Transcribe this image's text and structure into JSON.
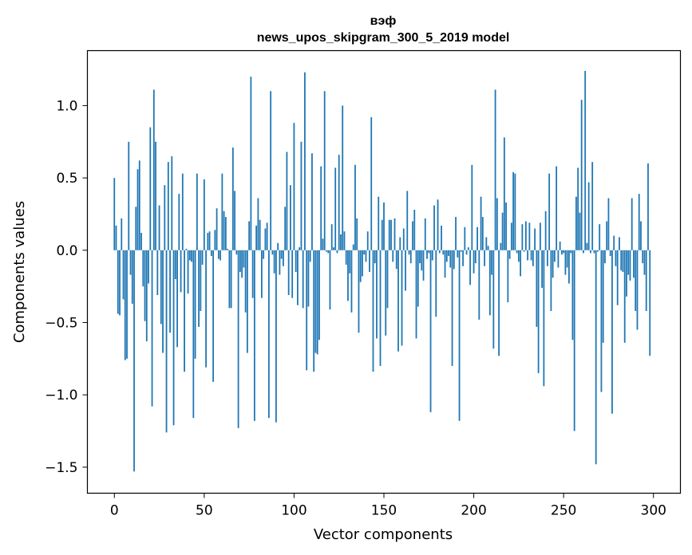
{
  "chart_data": {
    "type": "bar",
    "title_line1": "вэф",
    "title_line2": "news_upos_skipgram_300_5_2019 model",
    "xlabel": "Vector components",
    "ylabel": "Components values",
    "xlim": [
      -15,
      315
    ],
    "ylim": [
      -1.68,
      1.38
    ],
    "xticks": [
      0,
      50,
      100,
      150,
      200,
      250,
      300
    ],
    "xtick_labels": [
      "0",
      "50",
      "100",
      "150",
      "200",
      "250",
      "300"
    ],
    "yticks": [
      -1.5,
      -1.0,
      -0.5,
      0.0,
      0.5,
      1.0
    ],
    "ytick_labels": [
      "−1.5",
      "−1.0",
      "−0.5",
      "0.0",
      "0.5",
      "1.0"
    ],
    "bar_color": "#1f77b4",
    "values": [
      0.5,
      0.17,
      -0.44,
      -0.45,
      0.22,
      -0.34,
      -0.76,
      -0.75,
      0.75,
      -0.17,
      -0.37,
      -1.53,
      0.3,
      0.56,
      0.62,
      0.12,
      -0.25,
      -0.49,
      -0.63,
      -0.23,
      0.85,
      -1.08,
      1.11,
      0.75,
      -0.31,
      0.31,
      -0.51,
      -0.71,
      0.45,
      -1.26,
      0.61,
      -0.57,
      0.65,
      -1.21,
      -0.2,
      -0.67,
      0.39,
      -0.29,
      0.53,
      -0.84,
      0.01,
      -0.3,
      -0.07,
      -0.08,
      -1.16,
      -0.75,
      0.53,
      -0.53,
      -0.42,
      -0.1,
      0.49,
      -0.81,
      0.12,
      0.13,
      -0.04,
      -0.91,
      0.14,
      0.29,
      -0.06,
      -0.07,
      0.53,
      0.27,
      0.23,
      0.01,
      -0.4,
      -0.4,
      0.71,
      0.41,
      -0.03,
      -1.23,
      -0.15,
      -0.19,
      -0.12,
      -0.43,
      -0.71,
      0.2,
      1.2,
      -0.33,
      -1.18,
      0.17,
      0.36,
      0.21,
      -0.33,
      -0.06,
      0.15,
      0.19,
      -1.16,
      1.1,
      -0.03,
      -0.16,
      -1.19,
      0.05,
      -0.17,
      -0.06,
      -0.11,
      0.3,
      0.68,
      -0.31,
      0.45,
      -0.33,
      0.88,
      -0.15,
      -0.38,
      0.02,
      0.75,
      -0.4,
      1.23,
      -0.83,
      -0.39,
      -0.08,
      0.67,
      -0.84,
      -0.71,
      -0.72,
      -0.62,
      0.58,
      0.08,
      1.1,
      -0.01,
      -0.02,
      -0.41,
      0.18,
      0.02,
      0.57,
      -0.02,
      0.66,
      0.11,
      1.0,
      0.13,
      -0.1,
      -0.35,
      -0.16,
      -0.43,
      0.04,
      0.59,
      0.22,
      -0.57,
      -0.22,
      -0.18,
      -0.03,
      -0.08,
      0.13,
      -0.15,
      0.92,
      -0.84,
      -0.09,
      -0.61,
      0.37,
      -0.8,
      0.21,
      0.33,
      -0.59,
      -0.4,
      0.21,
      0.21,
      -0.08,
      0.22,
      -0.13,
      -0.7,
      0.09,
      -0.66,
      0.15,
      -0.28,
      0.41,
      -0.03,
      -0.09,
      0.2,
      0.28,
      -0.61,
      -0.39,
      -0.09,
      -0.14,
      -0.21,
      0.22,
      -0.06,
      -0.02,
      -1.12,
      -0.07,
      0.31,
      -0.46,
      0.35,
      -0.02,
      0.17,
      -0.03,
      -0.19,
      -0.08,
      -0.04,
      -0.12,
      -0.8,
      -0.13,
      0.23,
      -0.05,
      -1.18,
      -0.01,
      -0.11,
      0.16,
      -0.03,
      0.02,
      -0.24,
      0.59,
      -0.16,
      -0.09,
      0.16,
      -0.48,
      0.37,
      0.23,
      -0.11,
      0.09,
      0.03,
      -0.45,
      -0.17,
      -0.68,
      1.11,
      0.36,
      -0.73,
      0.05,
      0.26,
      0.78,
      0.33,
      -0.36,
      -0.06,
      0.19,
      0.54,
      0.53,
      -0.02,
      -0.08,
      -0.18,
      0.18,
      -0.01,
      0.2,
      -0.07,
      0.19,
      -0.07,
      -0.11,
      0.15,
      -0.53,
      -0.85,
      0.19,
      -0.26,
      -0.94,
      0.27,
      -0.11,
      0.53,
      -0.42,
      -0.19,
      -0.08,
      0.58,
      -0.12,
      0.06,
      -0.03,
      -0.02,
      -0.17,
      -0.12,
      -0.23,
      -0.02,
      -0.62,
      -1.25,
      0.37,
      0.57,
      0.26,
      1.04,
      -0.02,
      1.24,
      0.05,
      0.47,
      -0.02,
      0.61,
      -0.02,
      -1.48,
      -0.01,
      0.18,
      -0.98,
      -0.64,
      -0.09,
      0.2,
      0.36,
      -0.04,
      -1.13,
      0.1,
      -0.11,
      -0.38,
      0.09,
      -0.14,
      -0.15,
      -0.64,
      -0.32,
      -0.17,
      -0.21,
      0.36,
      -0.19,
      -0.42,
      -0.55,
      0.39,
      0.2,
      -0.09,
      -0.17,
      -0.42,
      0.6,
      -0.73
    ]
  }
}
